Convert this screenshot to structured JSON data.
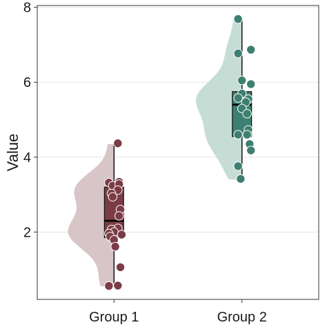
{
  "chart_data": {
    "type": "raincloud (half-violin + boxplot + jittered points)",
    "title": "",
    "xlabel": "",
    "ylabel": "Value",
    "ylim": [
      0.2,
      8.05
    ],
    "yticks": [
      2,
      4,
      6,
      8
    ],
    "grid": "horizontal major gridlines",
    "legend": "none",
    "categories": [
      "Group 1",
      "Group 2"
    ],
    "groups": [
      {
        "name": "Group 1",
        "color_points": "#7b3c46",
        "color_violin": "#d8c5c8",
        "box": {
          "min": 0.55,
          "q1": 1.85,
          "median": 2.3,
          "q3": 3.2,
          "max": 4.35
        },
        "violin_range": [
          0.55,
          4.35
        ],
        "points": [
          {
            "x": 1.03,
            "y": 4.37
          },
          {
            "x": 0.96,
            "y": 3.32
          },
          {
            "x": 0.99,
            "y": 3.24
          },
          {
            "x": 1.04,
            "y": 3.34
          },
          {
            "x": 1.04,
            "y": 3.28
          },
          {
            "x": 1.03,
            "y": 3.12
          },
          {
            "x": 0.98,
            "y": 3.03
          },
          {
            "x": 0.99,
            "y": 2.94
          },
          {
            "x": 1.05,
            "y": 2.6
          },
          {
            "x": 1.04,
            "y": 2.43
          },
          {
            "x": 1.03,
            "y": 2.1
          },
          {
            "x": 0.98,
            "y": 2.07
          },
          {
            "x": 1.0,
            "y": 2.0
          },
          {
            "x": 0.96,
            "y": 1.96
          },
          {
            "x": 1.06,
            "y": 1.93
          },
          {
            "x": 0.97,
            "y": 1.88
          },
          {
            "x": 1.0,
            "y": 1.79
          },
          {
            "x": 1.01,
            "y": 1.61
          },
          {
            "x": 1.05,
            "y": 1.06
          },
          {
            "x": 0.96,
            "y": 0.56
          },
          {
            "x": 1.03,
            "y": 0.57
          }
        ]
      },
      {
        "name": "Group 2",
        "color_points": "#3d7f70",
        "color_violin": "#c6ddd6",
        "box": {
          "min": 3.4,
          "q1": 4.55,
          "median": 5.4,
          "q3": 5.75,
          "max": 7.7
        },
        "violin_range": [
          3.4,
          7.7
        ],
        "points": [
          {
            "x": 1.97,
            "y": 7.69
          },
          {
            "x": 2.07,
            "y": 6.87
          },
          {
            "x": 1.97,
            "y": 6.77
          },
          {
            "x": 2.0,
            "y": 6.05
          },
          {
            "x": 2.07,
            "y": 5.95
          },
          {
            "x": 2.0,
            "y": 5.7
          },
          {
            "x": 1.97,
            "y": 5.58
          },
          {
            "x": 2.05,
            "y": 5.55
          },
          {
            "x": 2.03,
            "y": 5.47
          },
          {
            "x": 2.0,
            "y": 5.3
          },
          {
            "x": 2.04,
            "y": 5.16
          },
          {
            "x": 2.05,
            "y": 4.73
          },
          {
            "x": 2.04,
            "y": 4.6
          },
          {
            "x": 1.97,
            "y": 4.6
          },
          {
            "x": 2.06,
            "y": 4.35
          },
          {
            "x": 2.07,
            "y": 4.18
          },
          {
            "x": 1.97,
            "y": 3.76
          },
          {
            "x": 1.99,
            "y": 3.42
          }
        ]
      }
    ]
  }
}
